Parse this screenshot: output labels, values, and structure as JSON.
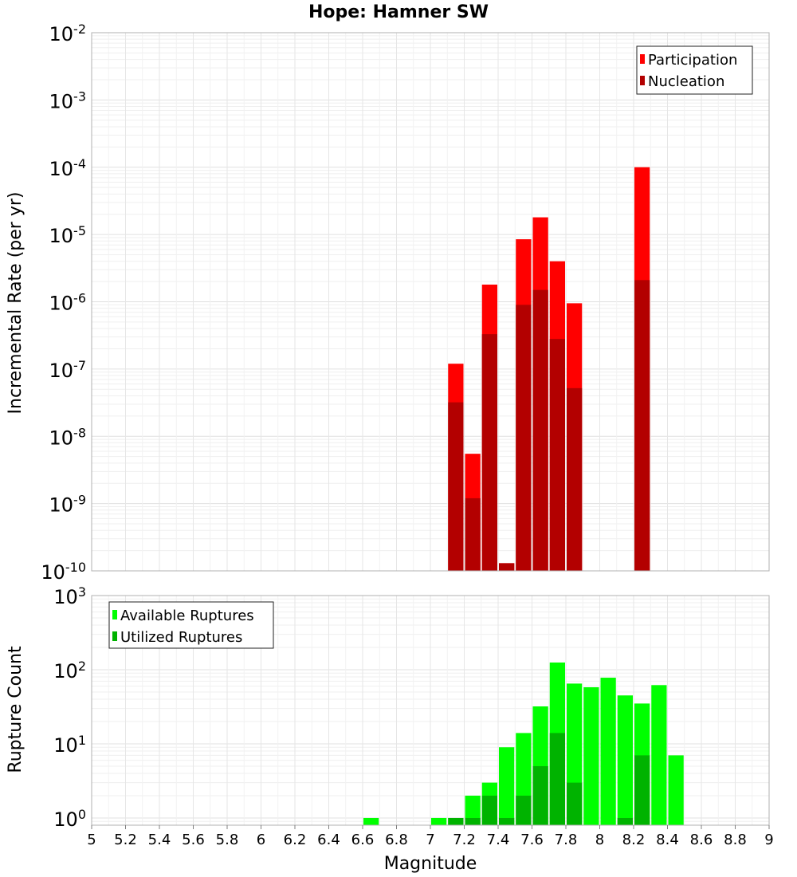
{
  "chart_data": [
    {
      "type": "bar",
      "title": "Hope: Hamner SW",
      "xlabel": "",
      "ylabel": "Incremental Rate (per yr)",
      "yscale": "log",
      "xlim": [
        5,
        9
      ],
      "ylim": [
        1e-10,
        0.01
      ],
      "grid": true,
      "legend_position": "top-right",
      "y_tick_labels": [
        {
          "base": "10",
          "exp": "-10"
        },
        {
          "base": "10",
          "exp": "-9"
        },
        {
          "base": "10",
          "exp": "-8"
        },
        {
          "base": "10",
          "exp": "-7"
        },
        {
          "base": "10",
          "exp": "-6"
        },
        {
          "base": "10",
          "exp": "-5"
        },
        {
          "base": "10",
          "exp": "-4"
        },
        {
          "base": "10",
          "exp": "-3"
        },
        {
          "base": "10",
          "exp": "-2"
        }
      ],
      "x": [
        7.15,
        7.25,
        7.35,
        7.45,
        7.55,
        7.65,
        7.75,
        7.85,
        8.25
      ],
      "series": [
        {
          "name": "Participation",
          "color": "#ff0000",
          "values": [
            1.2e-07,
            5.5e-09,
            1.8e-06,
            1.3e-10,
            8.5e-06,
            1.8e-05,
            4e-06,
            9.5e-07,
            0.0001
          ]
        },
        {
          "name": "Nucleation",
          "color": "#b30000",
          "values": [
            3.2e-08,
            1.2e-09,
            3.3e-07,
            1.3e-10,
            9e-07,
            1.5e-06,
            2.8e-07,
            5.2e-08,
            2.1e-06
          ]
        }
      ]
    },
    {
      "type": "bar",
      "title": "",
      "xlabel": "Magnitude",
      "ylabel": "Rupture Count",
      "yscale": "log",
      "xlim": [
        5,
        9
      ],
      "ylim": [
        0.8,
        1000
      ],
      "grid": true,
      "legend_position": "top-left",
      "x_tick_labels": [
        "5",
        "5.2",
        "5.4",
        "5.6",
        "5.8",
        "6",
        "6.2",
        "6.4",
        "6.6",
        "6.8",
        "7",
        "7.2",
        "7.4",
        "7.6",
        "7.8",
        "8",
        "8.2",
        "8.4",
        "8.6",
        "8.8",
        "9"
      ],
      "y_tick_labels": [
        {
          "base": "10",
          "exp": "0"
        },
        {
          "base": "10",
          "exp": "1"
        },
        {
          "base": "10",
          "exp": "2"
        },
        {
          "base": "10",
          "exp": "3"
        }
      ],
      "x": [
        6.65,
        7.05,
        7.15,
        7.25,
        7.35,
        7.45,
        7.55,
        7.65,
        7.75,
        7.85,
        7.95,
        8.05,
        8.15,
        8.25,
        8.35,
        8.45
      ],
      "series": [
        {
          "name": "Available Ruptures",
          "color": "#00ff00",
          "values": [
            1,
            1,
            1,
            2,
            3,
            9,
            14,
            32,
            125,
            65,
            58,
            78,
            45,
            35,
            62,
            7
          ]
        },
        {
          "name": "Utilized Ruptures",
          "color": "#00b300",
          "values": [
            0,
            0,
            1,
            1,
            2,
            1,
            2,
            5,
            14,
            3,
            0,
            0,
            1,
            7,
            0,
            0
          ]
        }
      ]
    }
  ]
}
